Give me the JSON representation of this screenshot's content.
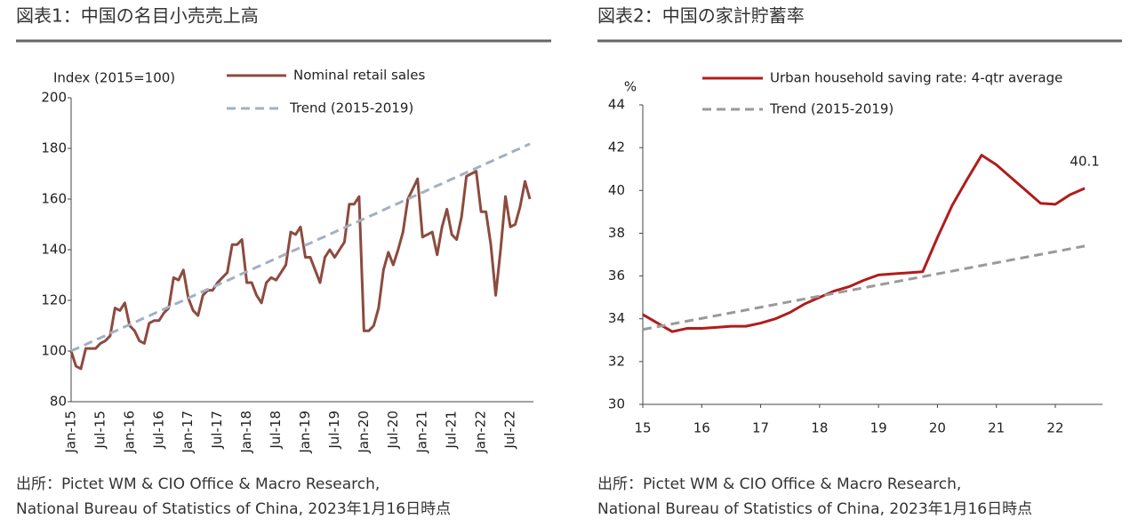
{
  "chart_data": [
    {
      "type": "line",
      "title": "図表1：中国の名目小売売上高",
      "ylabel": "Index (2015=100)",
      "ylim": [
        80,
        200
      ],
      "yticks": [
        80,
        100,
        120,
        140,
        160,
        180,
        200
      ],
      "categories": [
        "Jan-15",
        null,
        null,
        null,
        null,
        null,
        "Jul-15",
        null,
        null,
        null,
        null,
        null,
        "Jan-16",
        null,
        null,
        null,
        null,
        null,
        "Jul-16",
        null,
        null,
        null,
        null,
        null,
        "Jan-17",
        null,
        null,
        null,
        null,
        null,
        "Jul-17",
        null,
        null,
        null,
        null,
        null,
        "Jan-18",
        null,
        null,
        null,
        null,
        null,
        "Jul-18",
        null,
        null,
        null,
        null,
        null,
        "Jan-19",
        null,
        null,
        null,
        null,
        null,
        "Jul-19",
        null,
        null,
        null,
        null,
        null,
        "Jan-20",
        null,
        null,
        null,
        null,
        null,
        "Jul-20",
        null,
        null,
        null,
        null,
        null,
        "Jan-21",
        null,
        null,
        null,
        null,
        null,
        "Jul-21",
        null,
        null,
        null,
        null,
        null,
        "Jan-22",
        null,
        null,
        null,
        null,
        null,
        "Jul-22",
        null,
        null,
        null,
        null
      ],
      "series": [
        {
          "name": "Nominal retail sales",
          "color": "#8c4b3f",
          "dashed": false,
          "values": [
            100,
            94,
            93,
            101,
            101,
            101,
            103,
            104,
            106,
            117,
            116,
            119,
            110,
            108,
            104,
            103,
            111,
            112,
            112,
            115,
            117,
            129,
            128,
            132,
            121,
            116,
            114,
            122,
            124,
            124,
            127,
            129,
            131,
            142,
            142,
            144,
            127,
            127,
            122,
            119,
            127,
            129,
            128,
            131,
            134,
            147,
            146,
            149,
            137,
            137,
            132,
            127,
            137,
            140,
            137,
            140,
            143,
            158,
            158,
            161,
            108,
            108,
            110,
            117,
            132,
            139,
            134,
            140,
            147,
            160,
            164,
            168,
            145,
            146,
            147,
            138,
            149,
            156,
            146,
            144,
            153,
            169,
            170,
            171,
            155,
            155,
            142,
            122,
            140,
            161,
            149,
            150,
            157,
            167,
            160
          ]
        },
        {
          "name": "Trend (2015-2019)",
          "color": "#a3b0c2",
          "dashed": true,
          "values": [
            100.0,
            100.9,
            101.7,
            102.6,
            103.5,
            104.4,
            105.2,
            106.1,
            107.0,
            107.8,
            108.7,
            109.6,
            110.4,
            111.3,
            112.2,
            113.1,
            113.9,
            114.8,
            115.7,
            116.5,
            117.4,
            118.3,
            119.1,
            120.0,
            120.9,
            121.8,
            122.6,
            123.5,
            124.4,
            125.2,
            126.1,
            127.0,
            127.8,
            128.7,
            129.6,
            130.5,
            131.3,
            132.2,
            133.1,
            133.9,
            134.8,
            135.7,
            136.5,
            137.4,
            138.3,
            139.2,
            140.0,
            140.9,
            141.8,
            142.6,
            143.5,
            144.4,
            145.2,
            146.1,
            147.0,
            147.9,
            148.7,
            149.6,
            150.5,
            151.3,
            152.2,
            153.1,
            153.9,
            154.8,
            155.7,
            156.6,
            157.4,
            158.3,
            159.2,
            160.0,
            160.9,
            161.8,
            162.6,
            163.5,
            164.4,
            165.3,
            166.1,
            167.0,
            167.9,
            168.7,
            169.6,
            170.5,
            171.3,
            172.2,
            173.1,
            174.0,
            174.8,
            175.7,
            176.6,
            177.4,
            178.3,
            179.2,
            180.0,
            180.9,
            181.8
          ]
        }
      ],
      "source": [
        "出所：Pictet WM & CIO Office & Macro Research,",
        "National Bureau of Statistics of China, 2023年1月16日時点"
      ]
    },
    {
      "type": "line",
      "title": "図表2：中国の家計貯蓄率",
      "ylabel": "%",
      "ylim": [
        30,
        44
      ],
      "yticks": [
        30,
        32,
        34,
        36,
        38,
        40,
        42,
        44
      ],
      "xlim": [
        15,
        22.8
      ],
      "xticks": [
        15,
        16,
        17,
        18,
        19,
        20,
        21,
        22
      ],
      "x": [
        15,
        15.25,
        15.5,
        15.75,
        16,
        16.25,
        16.5,
        16.75,
        17,
        17.25,
        17.5,
        17.75,
        18,
        18.25,
        18.5,
        18.75,
        19,
        19.25,
        19.5,
        19.75,
        20,
        20.25,
        20.5,
        20.75,
        21,
        21.25,
        21.5,
        21.75,
        22,
        22.25,
        22.5
      ],
      "series": [
        {
          "name": "Urban household saving rate: 4-qtr average",
          "color": "#b01c1c",
          "dashed": false,
          "label_last": true,
          "values": [
            34.2,
            33.8,
            33.4,
            33.55,
            33.55,
            33.6,
            33.65,
            33.65,
            33.8,
            34.0,
            34.3,
            34.7,
            35.0,
            35.3,
            35.5,
            35.8,
            36.05,
            36.1,
            36.15,
            36.2,
            37.8,
            39.3,
            40.5,
            41.65,
            41.2,
            40.6,
            40.0,
            39.4,
            39.35,
            39.8,
            40.1
          ]
        },
        {
          "name": "Trend (2015-2019)",
          "color": "#9a9a9a",
          "dashed": true,
          "values": [
            33.5,
            33.63,
            33.76,
            33.89,
            34.02,
            34.15,
            34.28,
            34.41,
            34.54,
            34.67,
            34.8,
            34.93,
            35.06,
            35.19,
            35.32,
            35.45,
            35.58,
            35.71,
            35.84,
            35.97,
            36.1,
            36.23,
            36.36,
            36.49,
            36.62,
            36.75,
            36.88,
            37.01,
            37.14,
            37.27,
            37.4
          ]
        }
      ],
      "source": [
        "出所：Pictet WM & CIO Office & Macro Research,",
        "National Bureau of Statistics of China, 2023年1月16日時点"
      ]
    }
  ]
}
